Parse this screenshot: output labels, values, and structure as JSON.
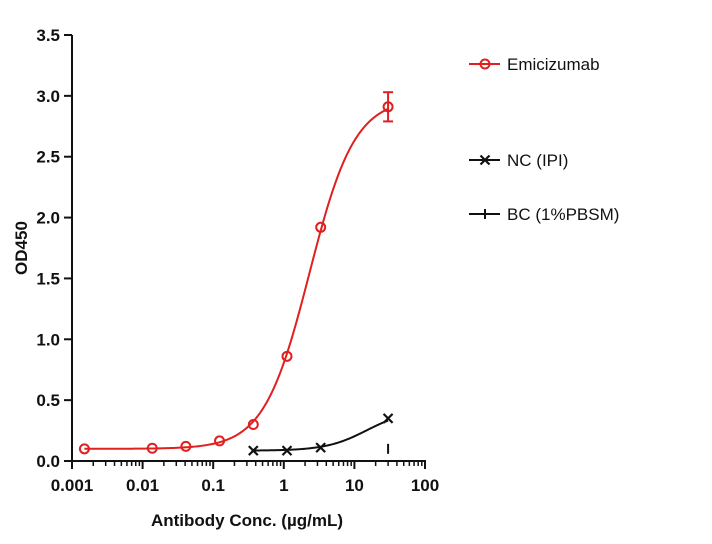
{
  "chart_data": {
    "type": "scatter",
    "xscale": "log",
    "xlabel": "Antibody Conc. (µg/mL)",
    "ylabel": "OD450",
    "xlim": [
      0.001,
      100
    ],
    "ylim": [
      0.0,
      3.5
    ],
    "x_tick_labels": [
      "0.001",
      "0.01",
      "0.1",
      "1",
      "10",
      "100"
    ],
    "x_ticks": [
      0.001,
      0.01,
      0.1,
      1,
      10,
      100
    ],
    "y_tick_labels": [
      "0.0",
      "0.5",
      "1.0",
      "1.5",
      "2.0",
      "2.5",
      "3.0",
      "3.5"
    ],
    "y_ticks": [
      0.0,
      0.5,
      1.0,
      1.5,
      2.0,
      2.5,
      3.0,
      3.5
    ],
    "legend_position": "right",
    "series": [
      {
        "name": "Emicizumab",
        "color": "#e02020",
        "marker": "circle-open",
        "x": [
          0.0015,
          0.0137,
          0.041,
          0.123,
          0.37,
          1.11,
          3.33,
          30
        ],
        "y": [
          0.1,
          0.105,
          0.12,
          0.165,
          0.3,
          0.86,
          1.92,
          2.91
        ],
        "error": [
          0,
          0,
          0,
          0,
          0,
          0,
          0,
          0.12
        ],
        "fit": {
          "bottom": 0.1,
          "top": 2.98,
          "ec50": 2.3,
          "hill": 1.35
        }
      },
      {
        "name": "NC (IPI)",
        "color": "#111111",
        "marker": "x",
        "x": [
          0.37,
          1.11,
          3.33,
          30
        ],
        "y": [
          0.085,
          0.085,
          0.11,
          0.35
        ],
        "error": [
          0,
          0,
          0,
          0
        ],
        "fit": {
          "bottom": 0.085,
          "top": 0.42,
          "ec50": 15,
          "hill": 1.5
        }
      },
      {
        "name": "BC (1%PBSM)",
        "color": "#111111",
        "marker": "vline",
        "x": [
          30
        ],
        "y": [
          0.1
        ],
        "error": [
          0
        ]
      }
    ]
  }
}
